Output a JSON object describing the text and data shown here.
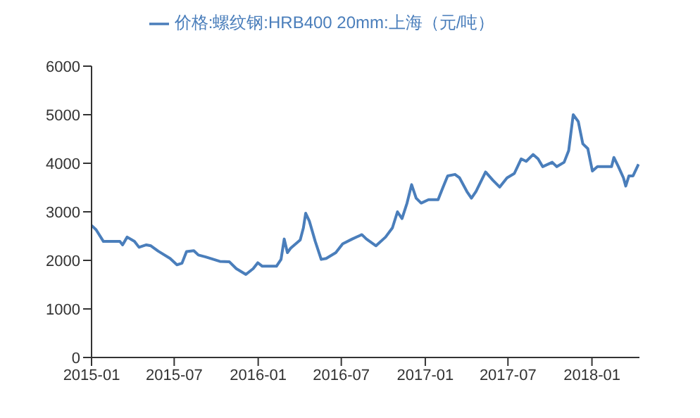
{
  "chart_data": {
    "type": "line",
    "legend": "top",
    "marker": "none",
    "line_style": "solid",
    "xlim": [
      "2015-01-01",
      "2018-04-15"
    ],
    "xticks": [
      "2015-01",
      "2015-07",
      "2016-01",
      "2016-07",
      "2017-01",
      "2017-07",
      "2018-01"
    ],
    "ylim": [
      0,
      6000
    ],
    "yticks": [
      0,
      1000,
      2000,
      3000,
      4000,
      5000,
      6000
    ],
    "x": [
      "2015-01-01",
      "2015-01-11",
      "2015-01-27",
      "2015-03-04",
      "2015-03-10",
      "2015-03-20",
      "2015-04-05",
      "2015-04-15",
      "2015-05-01",
      "2015-05-11",
      "2015-05-27",
      "2015-06-22",
      "2015-07-07",
      "2015-07-18",
      "2015-07-28",
      "2015-08-13",
      "2015-08-23",
      "2015-09-08",
      "2015-10-09",
      "2015-10-30",
      "2015-11-14",
      "2015-12-05",
      "2015-12-21",
      "2015-12-31",
      "2016-01-10",
      "2016-02-10",
      "2016-02-20",
      "2016-02-27",
      "2016-03-05",
      "2016-03-12",
      "2016-04-02",
      "2016-04-09",
      "2016-04-14",
      "2016-04-22",
      "2016-05-05",
      "2016-05-18",
      "2016-05-29",
      "2016-06-19",
      "2016-07-04",
      "2016-07-25",
      "2016-08-15",
      "2016-08-25",
      "2016-09-15",
      "2016-10-06",
      "2016-10-21",
      "2016-11-01",
      "2016-11-11",
      "2016-11-22",
      "2016-12-02",
      "2016-12-12",
      "2016-12-23",
      "2017-01-08",
      "2017-01-29",
      "2017-02-09",
      "2017-02-19",
      "2017-03-07",
      "2017-03-17",
      "2017-04-02",
      "2017-04-12",
      "2017-04-22",
      "2017-05-13",
      "2017-05-29",
      "2017-06-13",
      "2017-06-29",
      "2017-07-15",
      "2017-07-30",
      "2017-08-10",
      "2017-08-25",
      "2017-09-05",
      "2017-09-15",
      "2017-10-06",
      "2017-10-16",
      "2017-11-01",
      "2017-11-11",
      "2017-11-21",
      "2017-12-02",
      "2017-12-12",
      "2017-12-23",
      "2018-01-02",
      "2018-01-13",
      "2018-02-13",
      "2018-02-18",
      "2018-02-28",
      "2018-03-11",
      "2018-03-16",
      "2018-03-23",
      "2018-04-01",
      "2018-04-13"
    ],
    "series": [
      {
        "name": "价格:螺纹钢:HRB400 20mm:上海（元/吨）",
        "color": "#4a7ebb",
        "values": [
          2720,
          2630,
          2390,
          2390,
          2320,
          2480,
          2390,
          2270,
          2320,
          2300,
          2190,
          2040,
          1910,
          1940,
          2180,
          2200,
          2110,
          2070,
          1980,
          1970,
          1830,
          1710,
          1830,
          1950,
          1880,
          1880,
          2020,
          2440,
          2160,
          2250,
          2420,
          2670,
          2970,
          2810,
          2390,
          2020,
          2040,
          2160,
          2340,
          2440,
          2530,
          2440,
          2300,
          2480,
          2670,
          3000,
          2860,
          3180,
          3560,
          3280,
          3180,
          3250,
          3250,
          3510,
          3740,
          3770,
          3700,
          3420,
          3280,
          3420,
          3820,
          3650,
          3510,
          3700,
          3790,
          4090,
          4040,
          4180,
          4090,
          3930,
          4020,
          3930,
          4020,
          4260,
          5000,
          4860,
          4400,
          4300,
          3840,
          3930,
          3930,
          4120,
          3930,
          3700,
          3530,
          3740,
          3740,
          3980
        ]
      }
    ]
  }
}
